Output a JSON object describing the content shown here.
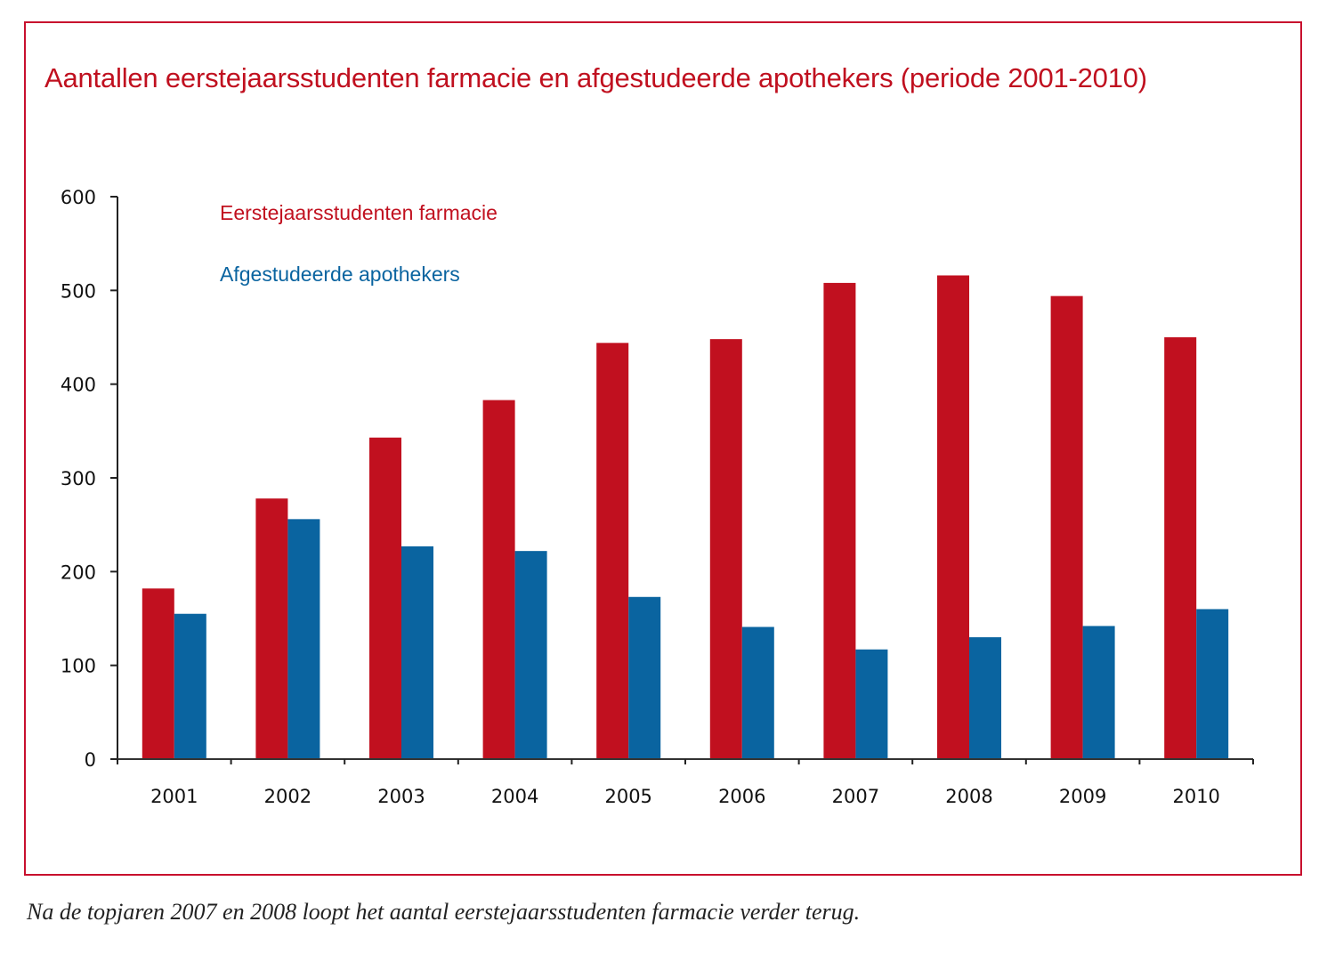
{
  "chart_data": {
    "type": "bar",
    "title": "Aantallen eerstejaarsstudenten farmacie en afgestudeerde apothekers (periode 2001-2010)",
    "xlabel": "",
    "ylabel": "",
    "categories": [
      "2001",
      "2002",
      "2003",
      "2004",
      "2005",
      "2006",
      "2007",
      "2008",
      "2009",
      "2010"
    ],
    "series": [
      {
        "name": "Eerstejaarsstudenten farmacie",
        "color": "#c1101f",
        "values": [
          182,
          278,
          343,
          383,
          444,
          448,
          508,
          516,
          494,
          450
        ]
      },
      {
        "name": "Afgestudeerde apothekers",
        "color": "#0a64a0",
        "values": [
          155,
          256,
          227,
          222,
          173,
          141,
          117,
          130,
          142,
          160
        ]
      }
    ],
    "ylim": [
      0,
      600
    ],
    "yticks": [
      0,
      100,
      200,
      300,
      400,
      500,
      600
    ],
    "grid": false,
    "legend_position": "top-left"
  },
  "caption": "Na de topjaren 2007 en 2008 loopt het aantal eerstejaarsstudenten farmacie verder terug.",
  "colors": {
    "frame": "#c8102e",
    "title": "#c0101f"
  }
}
